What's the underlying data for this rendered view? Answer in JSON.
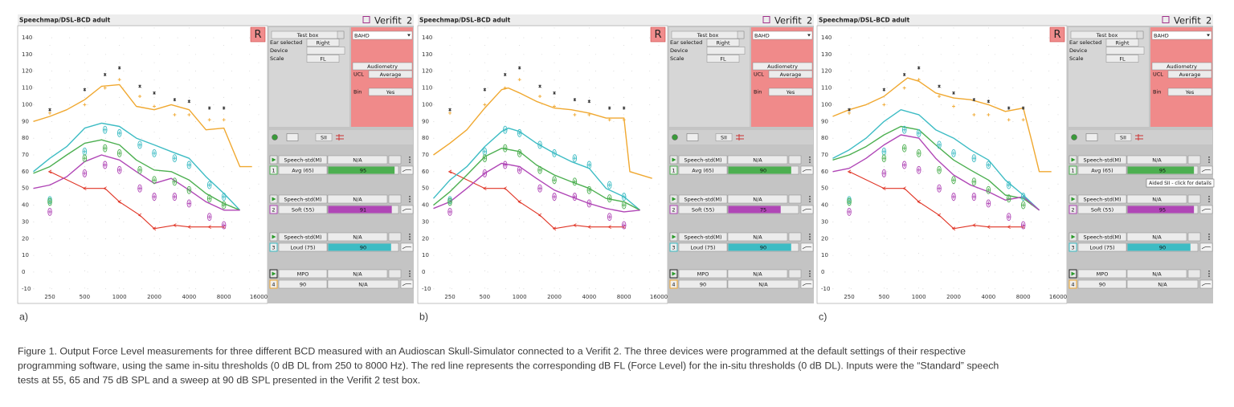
{
  "title": "Speechmap/DSL-BCD adult",
  "brand": "Verifit",
  "brand_num": "2",
  "badge": "R",
  "axes": {
    "type": "line",
    "xscale": "log",
    "xlim": [
      180,
      17000
    ],
    "ylim": [
      -12,
      146
    ],
    "xticks": [
      250,
      500,
      1000,
      2000,
      4000,
      8000,
      16000
    ],
    "yticks": [
      -10,
      0,
      10,
      20,
      30,
      40,
      50,
      60,
      70,
      80,
      90,
      100,
      110,
      120,
      130,
      140
    ],
    "grid": true
  },
  "thresholds": {
    "color": "#e03324",
    "x": [
      250,
      500,
      750,
      1000,
      1500,
      2000,
      3000,
      4000,
      6000,
      8000
    ],
    "values": [
      60,
      50,
      50,
      42,
      34,
      26,
      28,
      27,
      27,
      27
    ]
  },
  "targets": {
    "x": [
      250,
      500,
      750,
      1000,
      1500,
      2000,
      3000,
      4000,
      6000,
      8000
    ],
    "series": [
      {
        "color": "#3dbcc4",
        "marker": "ellipse",
        "values": [
          43,
          72,
          85,
          83,
          76,
          71,
          68,
          64,
          52,
          45
        ]
      },
      {
        "color": "#4caf50",
        "marker": "ellipse",
        "values": [
          42,
          68,
          74,
          71,
          61,
          55,
          54,
          49,
          44,
          40
        ]
      },
      {
        "color": "#b046b6",
        "marker": "ellipse",
        "values": [
          36,
          59,
          64,
          61,
          50,
          45,
          45,
          41,
          33,
          28
        ]
      },
      {
        "color": "#333333",
        "marker": "asterisk",
        "values": [
          97,
          109,
          118,
          122,
          111,
          107,
          103,
          102,
          98,
          98
        ]
      },
      {
        "color": "#f0a830",
        "marker": "plus",
        "values": [
          95,
          100,
          110,
          115,
          105,
          99,
          94,
          94,
          91,
          91
        ]
      }
    ]
  },
  "controls": {
    "test_box": "Test box",
    "ear_label": "Ear selected",
    "ear": "Right",
    "device": "Device",
    "scale_label": "Scale",
    "scale": "FL",
    "transducer": "BAHD",
    "audiometry": "Audiometry",
    "ucl_label": "UCL",
    "ucl": "Average",
    "bin_label": "Bin",
    "bin": "Yes",
    "metric": "SII"
  },
  "blocks": [
    {
      "num": "1",
      "stim": "Speech-std(M)",
      "label": "Avg (65)",
      "status": "N/A",
      "color": "#4caf50"
    },
    {
      "num": "2",
      "stim": "Speech-std(M)",
      "label": "Soft (55)",
      "status": "N/A",
      "color": "#b046b6"
    },
    {
      "num": "3",
      "stim": "Speech-std(M)",
      "label": "Loud (75)",
      "status": "N/A",
      "color": "#3dbcc4"
    },
    {
      "num": "4",
      "stim": "MPO",
      "label": "90",
      "status": "N/A",
      "color": "#f0a830"
    }
  ],
  "panels": [
    {
      "label": "a)",
      "sii": [
        95,
        91,
        90,
        "N/A"
      ],
      "series": [
        {
          "color": "#f0a830",
          "x": [
            180,
            250,
            350,
            500,
            700,
            1000,
            1400,
            2000,
            2800,
            4000,
            5600,
            8000,
            11000,
            14000
          ],
          "values": [
            90,
            93,
            97,
            103,
            111,
            112,
            99,
            97,
            100,
            97,
            85,
            86,
            63,
            63
          ]
        },
        {
          "color": "#3dbcc4",
          "x": [
            180,
            250,
            350,
            500,
            700,
            1000,
            1400,
            2000,
            2800,
            4000,
            5600,
            8000,
            11000
          ],
          "values": [
            60,
            68,
            75,
            86,
            89,
            87,
            80,
            76,
            72,
            68,
            57,
            47,
            37
          ]
        },
        {
          "color": "#4caf50",
          "x": [
            180,
            250,
            350,
            500,
            700,
            1000,
            1400,
            2000,
            2800,
            4000,
            5600,
            8000,
            11000
          ],
          "values": [
            59,
            63,
            70,
            77,
            79,
            76,
            67,
            61,
            60,
            55,
            47,
            41,
            37
          ]
        },
        {
          "color": "#b046b6",
          "x": [
            180,
            250,
            350,
            500,
            700,
            1000,
            1400,
            2000,
            2800,
            4000,
            5600,
            8000,
            11000
          ],
          "values": [
            50,
            52,
            57,
            66,
            70,
            67,
            60,
            53,
            56,
            49,
            42,
            37,
            37
          ]
        }
      ]
    },
    {
      "label": "b)",
      "sii": [
        90,
        75,
        90,
        "N/A"
      ],
      "series": [
        {
          "color": "#f0a830",
          "x": [
            180,
            250,
            350,
            500,
            700,
            800,
            1000,
            1400,
            2000,
            2800,
            4000,
            5600,
            8000,
            9000,
            14000
          ],
          "values": [
            70,
            77,
            85,
            98,
            109,
            110,
            107,
            102,
            98,
            97,
            95,
            92,
            92,
            60,
            56
          ]
        },
        {
          "color": "#3dbcc4",
          "x": [
            180,
            250,
            350,
            500,
            700,
            800,
            1000,
            1400,
            2000,
            2800,
            4000,
            5600,
            8000,
            11000
          ],
          "values": [
            44,
            55,
            63,
            75,
            84,
            86,
            84,
            77,
            71,
            66,
            62,
            50,
            45,
            37
          ]
        },
        {
          "color": "#4caf50",
          "x": [
            180,
            250,
            350,
            500,
            700,
            1000,
            1400,
            2000,
            2800,
            4000,
            5600,
            8000,
            11000
          ],
          "values": [
            40,
            48,
            58,
            69,
            74,
            72,
            64,
            58,
            54,
            50,
            44,
            42,
            37
          ]
        },
        {
          "color": "#b046b6",
          "x": [
            180,
            250,
            350,
            500,
            700,
            1000,
            1400,
            2000,
            2800,
            4000,
            5600,
            8000,
            11000
          ],
          "values": [
            38,
            42,
            50,
            59,
            65,
            63,
            56,
            49,
            45,
            41,
            38,
            36,
            37
          ]
        }
      ]
    },
    {
      "label": "c)",
      "sii": [
        95,
        95,
        90,
        "N/A"
      ],
      "tooltip": "Aided SII - click for details",
      "series": [
        {
          "color": "#f0a830",
          "x": [
            180,
            250,
            350,
            500,
            700,
            800,
            1000,
            1400,
            2000,
            2800,
            4000,
            5600,
            8000,
            9500,
            11000,
            14000
          ],
          "values": [
            93,
            97,
            100,
            105,
            113,
            116,
            114,
            107,
            104,
            103,
            100,
            96,
            98,
            78,
            60,
            60
          ]
        },
        {
          "color": "#3dbcc4",
          "x": [
            180,
            250,
            350,
            500,
            700,
            1000,
            1400,
            2000,
            2800,
            4000,
            5600,
            8000,
            11000
          ],
          "values": [
            68,
            73,
            80,
            90,
            97,
            94,
            85,
            80,
            73,
            67,
            55,
            46,
            37
          ]
        },
        {
          "color": "#4caf50",
          "x": [
            180,
            250,
            350,
            500,
            700,
            1000,
            1400,
            2000,
            2800,
            4000,
            5600,
            8000,
            11000
          ],
          "values": [
            67,
            70,
            75,
            82,
            87,
            85,
            76,
            67,
            61,
            55,
            46,
            44,
            37
          ]
        },
        {
          "color": "#b046b6",
          "x": [
            180,
            250,
            350,
            500,
            700,
            1000,
            1400,
            2000,
            2800,
            4000,
            5600,
            8000,
            11000
          ],
          "values": [
            60,
            62,
            68,
            76,
            82,
            80,
            68,
            58,
            52,
            48,
            43,
            45,
            37
          ]
        }
      ]
    }
  ],
  "caption": [
    "Figure 1. Output Force Level measurements for three different BCD measured with an Audioscan Skull-Simulator connected to a Verifit 2. The three devices were programmed at the default settings of their respective",
    "programming software, using the same in-situ thresholds (0 dB DL from 250 to 8000 Hz). The red line represents the corresponding dB FL (Force Level) for the in-situ thresholds (0 dB DL). Inputs were the “Standard” speech",
    "tests at 55, 65 and 75 dB SPL and a sweep at 90 dB SPL presented in the Verifit 2 test box."
  ]
}
